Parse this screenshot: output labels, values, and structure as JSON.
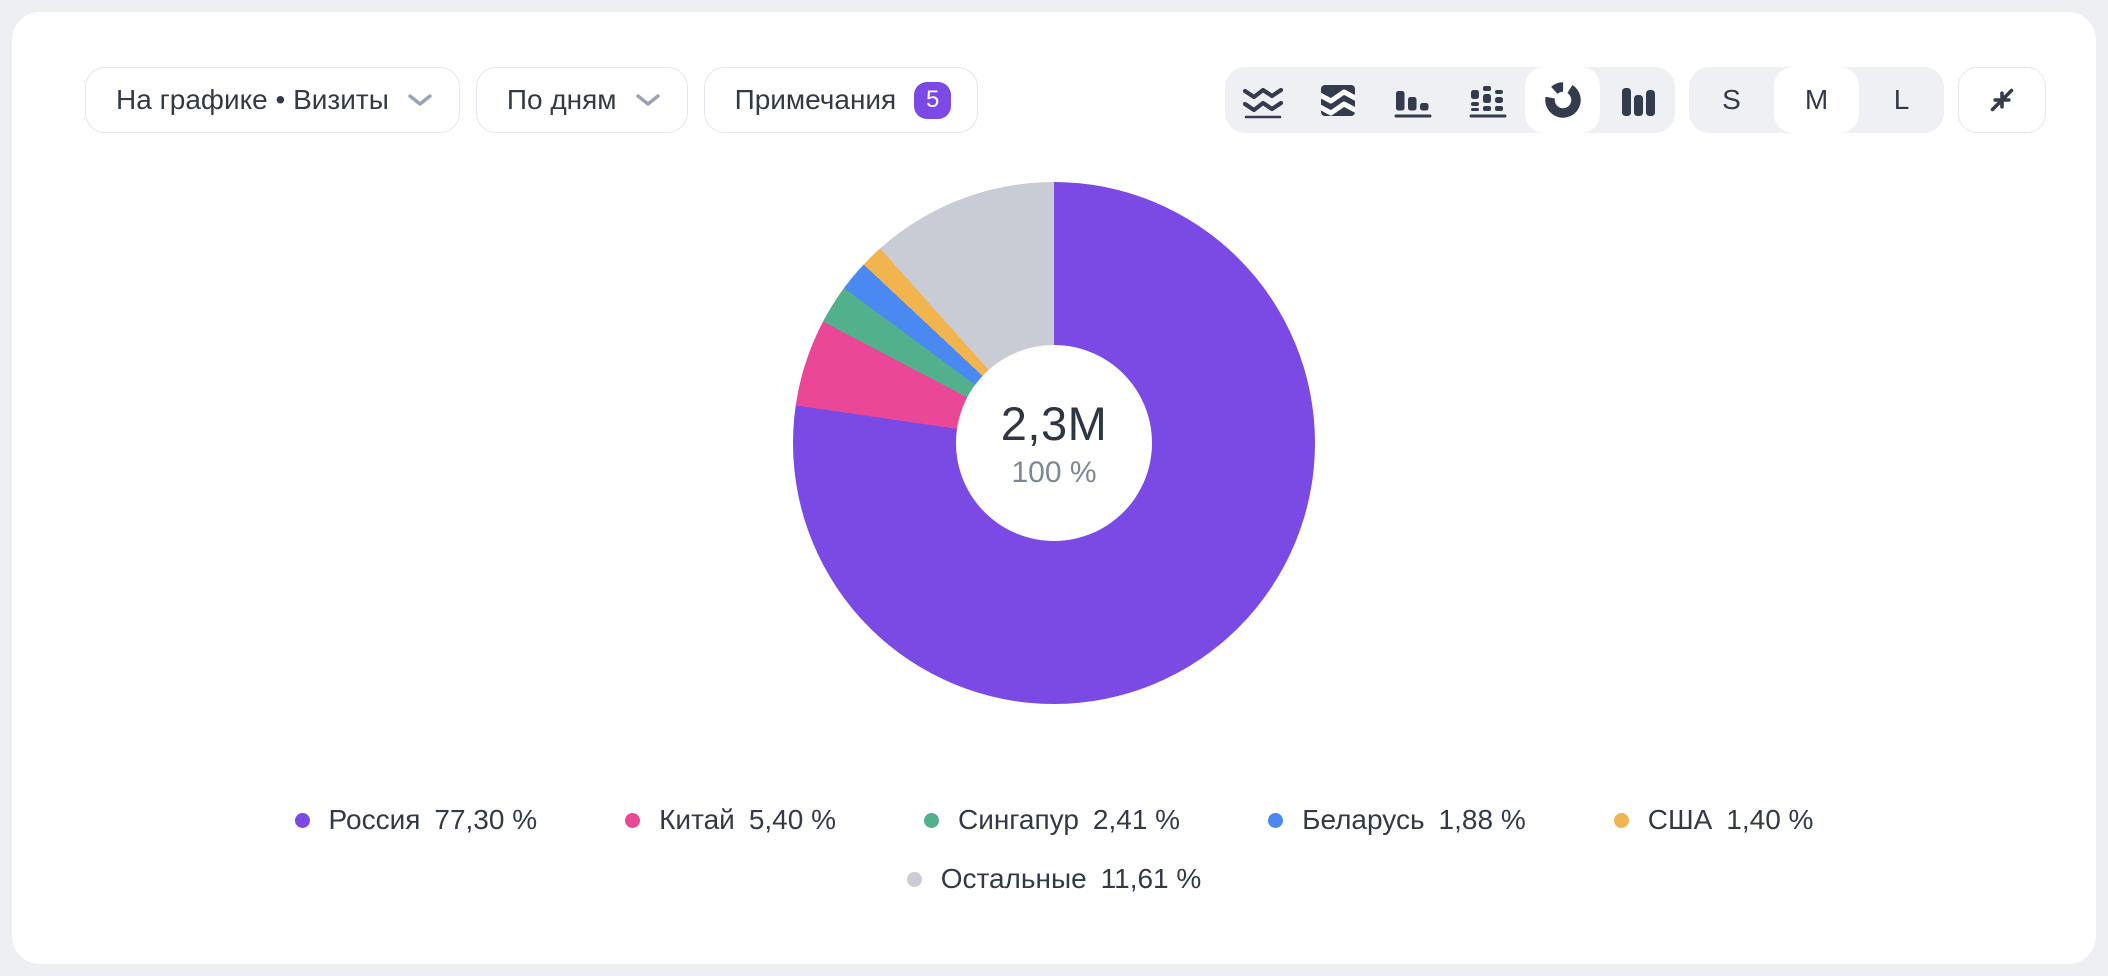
{
  "accent_color": "#7B49E3",
  "toolbar": {
    "metric_dropdown": {
      "label": "На графике • Визиты"
    },
    "grouping_dropdown": {
      "label": "По дням"
    },
    "notes_button": {
      "label": "Примечания",
      "badge": "5"
    },
    "chart_types": [
      {
        "name": "line-chart",
        "active": false
      },
      {
        "name": "stacked-area-chart",
        "active": false
      },
      {
        "name": "bar-chart",
        "active": false
      },
      {
        "name": "stacked-bar-chart",
        "active": false
      },
      {
        "name": "pie-chart",
        "active": true
      },
      {
        "name": "columns-chart",
        "active": false
      }
    ],
    "size_switcher": {
      "options": [
        "S",
        "M",
        "L"
      ],
      "selected": "M"
    },
    "collapse_button": {
      "icon": "collapse-icon"
    }
  },
  "donut": {
    "center_value": "2,3M",
    "center_percent": "100 %"
  },
  "chart_data": {
    "type": "pie",
    "title": "",
    "total_label": "2,3M",
    "total_percent_label": "100 %",
    "legend_position": "bottom",
    "start_angle_deg": 0,
    "inner_radius_ratio": 0.375,
    "segments": [
      {
        "label": "Россия",
        "value_percent": 77.3,
        "display": "77,30 %",
        "color": "#7B49E3"
      },
      {
        "label": "Китай",
        "value_percent": 5.4,
        "display": "5,40 %",
        "color": "#EA4896"
      },
      {
        "label": "Сингапур",
        "value_percent": 2.41,
        "display": "2,41 %",
        "color": "#53B08C"
      },
      {
        "label": "Беларусь",
        "value_percent": 1.88,
        "display": "1,88 %",
        "color": "#4A88F2"
      },
      {
        "label": "США",
        "value_percent": 1.4,
        "display": "1,40 %",
        "color": "#F2B44F"
      },
      {
        "label": "Остальные",
        "value_percent": 11.61,
        "display": "11,61 %",
        "color": "#C9CCD5"
      }
    ],
    "legend_rows": [
      5,
      1
    ]
  }
}
